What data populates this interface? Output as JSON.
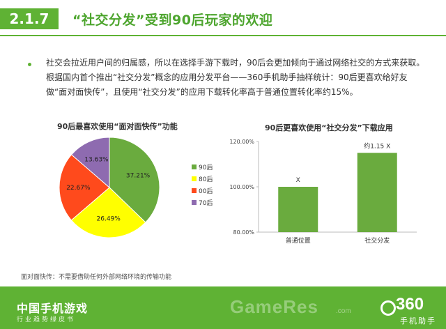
{
  "header": {
    "section_number": "2.1.7",
    "title": "“社交分发”受到90后玩家的欢迎"
  },
  "body_text": "社交会拉近用户间的归属感，所以在选择手游下载时，90后会更加倾向于通过网络社交的方式来获取。根据国内首个推出“社交分发”概念的应用分发平台——360手机助手抽样统计：90后更喜欢给好友做“面对面快传”，且使用“社交分发”的应用下载转化率高于普通位置转化率约15%。",
  "footnote": "面对面快传：不需要借助任何外部网络环境的传输功能",
  "footer": {
    "brand": "中国手机游戏",
    "subtitle": "行业趋势绿皮书",
    "watermark": "GameRes",
    "watermark_suffix": ".com",
    "logo_number": "360",
    "logo_caption": "手机助手"
  },
  "colors": {
    "brand_green": "#5fb234",
    "series_90": "#6aab3e",
    "series_80": "#ffff00",
    "series_00": "#ff4a1c",
    "series_70": "#8e6bb0",
    "bar": "#6aab3e"
  },
  "chart_data": [
    {
      "type": "pie",
      "title": "90后最喜欢使用“面对面快传”功能",
      "labels": [
        "90后",
        "80后",
        "00后",
        "70后"
      ],
      "values": [
        37.21,
        26.49,
        22.67,
        13.63
      ],
      "value_labels": [
        "37.21%",
        "26.49%",
        "22.67%",
        "13.63%"
      ],
      "legend_position": "right"
    },
    {
      "type": "bar",
      "title": "90后更喜欢使用“社交分发”下载应用",
      "categories": [
        "普通位置",
        "社交分发"
      ],
      "values": [
        100,
        115
      ],
      "data_labels": [
        "X",
        "约1.15 X"
      ],
      "ylim": [
        80,
        120
      ],
      "yticks": [
        "80.00%",
        "100.00%",
        "120.00%"
      ],
      "grid": false
    }
  ]
}
